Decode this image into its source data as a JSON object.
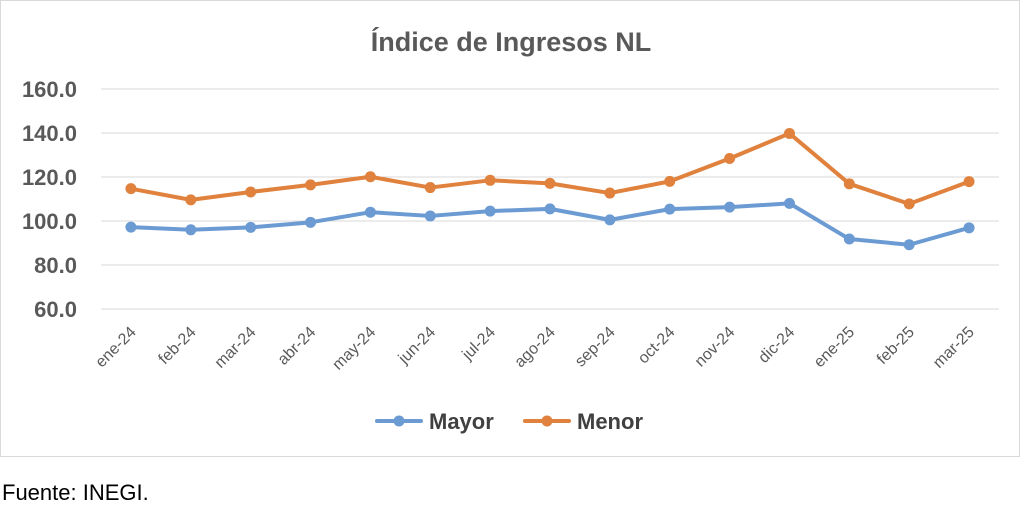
{
  "chart_data": {
    "type": "line",
    "title": "Índice de Ingresos NL",
    "xlabel": "",
    "ylabel": "",
    "categories": [
      "ene-24",
      "feb-24",
      "mar-24",
      "abr-24",
      "may-24",
      "jun-24",
      "jul-24",
      "ago-24",
      "sep-24",
      "oct-24",
      "nov-24",
      "dic-24",
      "ene-25",
      "feb-25",
      "mar-25"
    ],
    "y_ticks": [
      "60.0",
      "80.0",
      "100.0",
      "120.0",
      "140.0",
      "160.0"
    ],
    "ylim": [
      60,
      160
    ],
    "grid": "horizontal",
    "legend_position": "bottom",
    "series": [
      {
        "name": "Mayor",
        "color": "#6b9bd2",
        "values": [
          97.2,
          96.0,
          97.1,
          99.4,
          104.0,
          102.3,
          104.5,
          105.5,
          100.5,
          105.4,
          106.3,
          108.0,
          91.8,
          89.2,
          96.9
        ]
      },
      {
        "name": "Menor",
        "color": "#e0823d",
        "values": [
          114.7,
          109.6,
          113.2,
          116.4,
          120.1,
          115.2,
          118.5,
          117.1,
          112.7,
          118.0,
          128.4,
          139.8,
          116.9,
          107.8,
          117.9
        ]
      }
    ]
  },
  "source_note": "Fuente: INEGI."
}
